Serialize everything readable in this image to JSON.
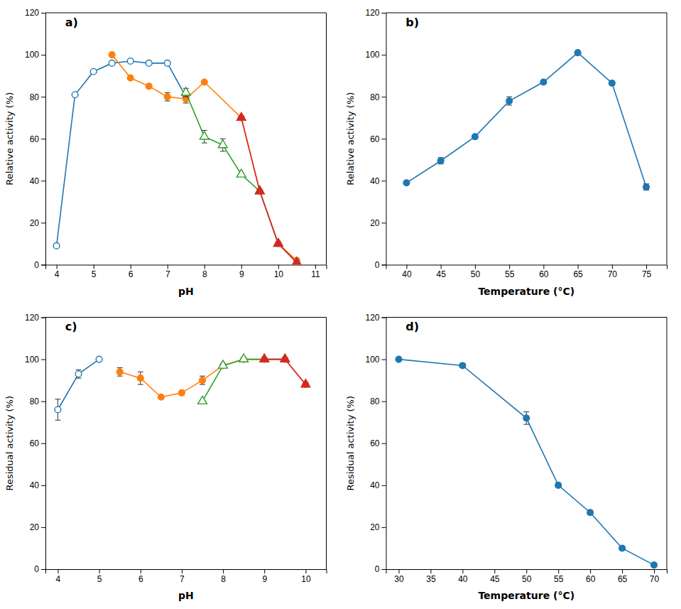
{
  "chart_data": [
    {
      "type": "line",
      "title": "a)",
      "x_label": "pH",
      "y_label": "Relative activity (%)",
      "xlim": [
        3.7,
        11.3
      ],
      "ylim": [
        0,
        120
      ],
      "xticks": [
        4,
        5,
        6,
        7,
        8,
        9,
        10,
        11
      ],
      "yticks": [
        0,
        20,
        40,
        60,
        80,
        100,
        120
      ],
      "series": [
        {
          "marker": "circle-open",
          "x": [
            4,
            4.5,
            5,
            5.5,
            6,
            6.5,
            7,
            7.5
          ],
          "values": [
            9,
            81,
            92,
            96,
            97,
            96,
            96,
            80
          ],
          "errors": [
            0,
            0,
            0,
            0,
            0,
            0,
            0,
            0
          ]
        },
        {
          "marker": "circle",
          "x": [
            5.5,
            6,
            6.5,
            7,
            7.5,
            8,
            9,
            9.5,
            10,
            10.5
          ],
          "values": [
            100,
            89,
            85,
            80,
            79,
            87,
            70,
            35,
            10,
            2
          ],
          "errors": [
            0,
            0,
            0,
            2,
            2,
            0,
            0,
            0,
            0,
            0
          ]
        },
        {
          "marker": "triangle-open",
          "x": [
            7.5,
            8,
            8.5,
            9,
            9.5,
            10,
            10.5
          ],
          "values": [
            82,
            61,
            57,
            43,
            35,
            10,
            1
          ],
          "errors": [
            2,
            3,
            3,
            0,
            0,
            0,
            0
          ]
        },
        {
          "marker": "triangle",
          "x": [
            9,
            9.5,
            10,
            10.5
          ],
          "values": [
            70,
            35,
            10,
            1
          ],
          "errors": [
            0,
            0,
            0,
            0
          ]
        }
      ]
    },
    {
      "type": "line",
      "title": "b)",
      "x_label": "Temperature (°C)",
      "y_label": "Relative activity (%)",
      "xlim": [
        37,
        78
      ],
      "ylim": [
        0,
        120
      ],
      "xticks": [
        40,
        45,
        50,
        55,
        60,
        65,
        70,
        75
      ],
      "yticks": [
        0,
        20,
        40,
        60,
        80,
        100,
        120
      ],
      "series": [
        {
          "marker": "circle",
          "x": [
            40,
            45,
            50,
            55,
            60,
            65,
            70,
            75
          ],
          "values": [
            39,
            49.5,
            61,
            78,
            87,
            101,
            86.5,
            37
          ],
          "errors": [
            0,
            1.5,
            0,
            2,
            0,
            0.5,
            1,
            1.5
          ]
        }
      ]
    },
    {
      "type": "line",
      "title": "c)",
      "x_label": "pH",
      "y_label": "Residual activity (%)",
      "xlim": [
        3.7,
        10.5
      ],
      "ylim": [
        0,
        120
      ],
      "xticks": [
        4,
        5,
        6,
        7,
        8,
        9,
        10
      ],
      "yticks": [
        0,
        20,
        40,
        60,
        80,
        100,
        120
      ],
      "series": [
        {
          "marker": "circle-open",
          "x": [
            4,
            4.5,
            5
          ],
          "values": [
            76,
            93,
            100
          ],
          "errors": [
            5,
            2,
            0
          ]
        },
        {
          "marker": "circle",
          "x": [
            5.5,
            6,
            6.5,
            7,
            7.5,
            8,
            8.5,
            9,
            9.5,
            10
          ],
          "values": [
            94,
            91,
            82,
            84,
            90,
            97,
            100,
            100,
            100,
            88
          ],
          "errors": [
            2,
            3,
            0,
            1,
            2,
            0,
            0,
            0,
            0,
            0
          ]
        },
        {
          "marker": "triangle-open",
          "x": [
            7.5,
            8,
            8.5,
            9,
            9.5
          ],
          "values": [
            80,
            97,
            100,
            100,
            100
          ],
          "errors": [
            0,
            0,
            0,
            0,
            0
          ]
        },
        {
          "marker": "triangle",
          "x": [
            9,
            9.5,
            10
          ],
          "values": [
            100,
            100,
            88
          ],
          "errors": [
            0,
            0,
            0
          ]
        }
      ]
    },
    {
      "type": "line",
      "title": "d)",
      "x_label": "Temperature (°C)",
      "y_label": "Residual activity (%)",
      "xlim": [
        28,
        72
      ],
      "ylim": [
        0,
        120
      ],
      "xticks": [
        30,
        35,
        40,
        45,
        50,
        55,
        60,
        65,
        70
      ],
      "yticks": [
        0,
        20,
        40,
        60,
        80,
        100,
        120
      ],
      "series": [
        {
          "marker": "circle",
          "x": [
            30,
            40,
            50,
            55,
            60,
            65,
            70
          ],
          "values": [
            100,
            97,
            72,
            40,
            27,
            10,
            2
          ],
          "errors": [
            0,
            1,
            3,
            1,
            1,
            1,
            0
          ]
        }
      ]
    }
  ]
}
